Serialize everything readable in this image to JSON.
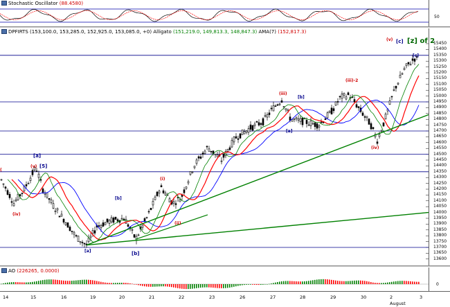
{
  "panes": {
    "stochastic": {
      "name": "Stochastic Oscillator",
      "value": "(88.4580)",
      "y_ticks": [
        "50"
      ]
    },
    "price": {
      "symbol": "DPFIRTS",
      "ohlc": "(153,100.0, 153,285.0, 152,925.0, 153,085.0, +0)",
      "alligator_label": "Alligato",
      "alligator_values": "(151,219.0, 149,813.3, 148,847.3)",
      "ama_label": "AMA(7)",
      "ama_value": "(152,817.3)",
      "y_ticks": [
        "15450",
        "15400",
        "15350",
        "15300",
        "15250",
        "15200",
        "15150",
        "15100",
        "15050",
        "15000",
        "14950",
        "14900",
        "14850",
        "14800",
        "14750",
        "14700",
        "14650",
        "14600",
        "14550",
        "14500",
        "14450",
        "14400",
        "14350",
        "14300",
        "14250",
        "14200",
        "14150",
        "14100",
        "14050",
        "14000",
        "13950",
        "13900",
        "13850",
        "13800",
        "13750",
        "13700",
        "13650",
        "13600"
      ]
    },
    "ao": {
      "name": "AO",
      "value": "(226265, 0.0000)",
      "y_ticks": [
        "0"
      ]
    }
  },
  "x_axis": {
    "labels": [
      "14",
      "15",
      "16",
      "19",
      "20",
      "21",
      "22",
      "23",
      "26",
      "27",
      "28",
      "29",
      "30",
      "2",
      "3"
    ],
    "sublabel": "August"
  },
  "wave_labels": {
    "a_major": "[a]",
    "b_major": "[b]",
    "c_major": "[c]",
    "z_of_2": "[z] of 2",
    "v_left": "(v)",
    "five_left": "[5]",
    "four_left": "(iv)",
    "a_low": "[a]",
    "b_mid": "[b]",
    "i_lab": "(i)",
    "ii_lab": "(ii)",
    "iii_lab": "(iii)",
    "a_small": "[a]",
    "b_small": "[b]",
    "iii2": "(iii)-2",
    "iv_lab": "(iv)",
    "v_top": "(v)",
    "paren_left": "(",
    "c_small": "[c]"
  },
  "colors": {
    "jaw": "#0000ff",
    "teeth": "#ff0000",
    "lips": "#008000",
    "trend": "#008000",
    "hline": "#00008b",
    "stoch_k": "#000000",
    "stoch_d": "#ff0000"
  }
}
